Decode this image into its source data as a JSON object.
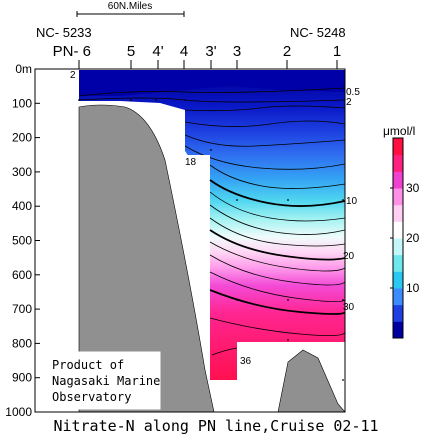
{
  "chart_data": {
    "type": "contour",
    "title": "Nitrate-N along PN line,Cruise 02-11",
    "distance_scale_label": "60N.Miles",
    "stations": [
      {
        "label": "NC- 5233",
        "station": "PN- 6"
      },
      {
        "label": "",
        "station": "5"
      },
      {
        "label": "",
        "station": "4'"
      },
      {
        "label": "",
        "station": "4"
      },
      {
        "label": "",
        "station": "3'"
      },
      {
        "label": "",
        "station": "3"
      },
      {
        "label": "",
        "station": "2"
      },
      {
        "label": "NC- 5248",
        "station": "1"
      }
    ],
    "y_axis": {
      "ticks": [
        "0m",
        "100",
        "200",
        "300",
        "400",
        "500",
        "600",
        "700",
        "800",
        "900",
        "1000"
      ],
      "ylim": [
        0,
        1000
      ],
      "direction": "depth, increasing downward"
    },
    "contour_labels": [
      {
        "text": "2"
      },
      {
        "text": "0.5"
      },
      {
        "text": "2"
      },
      {
        "text": "18"
      },
      {
        "text": "10"
      },
      {
        "text": "20"
      },
      {
        "text": "30"
      },
      {
        "text": "36"
      }
    ],
    "colorbar": {
      "unit_label": "μmol/l",
      "ticks": [
        "30",
        "20",
        "10"
      ],
      "range": [
        0,
        40
      ],
      "colors_bottom_to_top": [
        "#0000a0",
        "#1f3fe0",
        "#3c8cff",
        "#28c8f0",
        "#6ee8ee",
        "#c4f8f8",
        "#ffffff",
        "#ffd0f4",
        "#ff90e8",
        "#f040d0",
        "#ff2080",
        "#ff1040"
      ]
    },
    "note": "Product of Nagasaki Marine Observatory"
  },
  "colors": {
    "bathymetry": "#909090",
    "frame": "#000000"
  }
}
